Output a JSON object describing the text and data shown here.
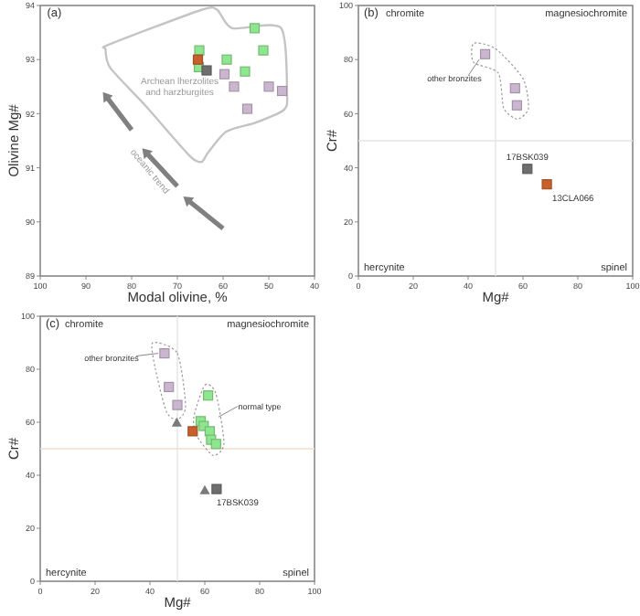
{
  "chart_data": [
    {
      "type": "scatter",
      "xlabel": "Modal olivine, %",
      "ylabel": "Olivine Mg#",
      "xlim": [
        100,
        40
      ],
      "xticks": [
        100,
        90,
        80,
        70,
        60,
        50,
        40
      ],
      "ylim": [
        89,
        94
      ],
      "yticks": [
        89,
        90,
        91,
        92,
        93,
        94
      ],
      "marker": "square",
      "series": [
        {
          "color": "#8ee68e",
          "x": [
            53.1,
            65.2,
            51.2,
            59.2,
            55.2,
            65.3
          ],
          "values": [
            93.58,
            93.17,
            93.17,
            93.0,
            92.78,
            92.86
          ]
        },
        {
          "color": "#c8602c",
          "x": [
            65.5
          ],
          "values": [
            93.0
          ]
        },
        {
          "color": "#6e6e6e",
          "x": [
            63.6
          ],
          "values": [
            92.8
          ]
        },
        {
          "color": "#cbb6cf",
          "x": [
            59.7,
            57.6,
            50.0,
            47.1,
            54.7
          ],
          "values": [
            92.73,
            92.5,
            92.5,
            92.42,
            92.09
          ]
        }
      ],
      "annotations": [
        "(a)",
        "Archean lherzolites and harzburgites",
        "oceanic trend"
      ]
    },
    {
      "type": "scatter",
      "xlabel": "Mg#",
      "ylabel": "Cr#",
      "xlim": [
        0,
        100
      ],
      "xticks": [
        0,
        20,
        40,
        60,
        80,
        100
      ],
      "ylim": [
        0,
        100
      ],
      "yticks": [
        0,
        20,
        40,
        60,
        80,
        100
      ],
      "marker": "square",
      "series": [
        {
          "color": "#cbb6cf",
          "x": [
            46.2,
            57.1,
            57.8
          ],
          "values": [
            82,
            69.4,
            63.1
          ]
        },
        {
          "color": "#6e6e6e",
          "x": [
            61.6
          ],
          "values": [
            39.6
          ]
        },
        {
          "color": "#c8602c",
          "x": [
            68.7
          ],
          "values": [
            33.9
          ]
        }
      ],
      "ref_lines": [
        {
          "axis": "x",
          "value": 50,
          "color": "#e4e4e4"
        },
        {
          "axis": "y",
          "value": 50,
          "color": "#e4e4e4"
        }
      ],
      "annotations": [
        "(b)",
        "chromite",
        "magnesiochromite",
        "hercynite",
        "spinel",
        "other bronzites",
        {
          "text": "17BSK039",
          "x": 61.6,
          "y": 39.6
        },
        {
          "text": "13CLA066",
          "x": 68.7,
          "y": 33.9
        }
      ]
    },
    {
      "type": "scatter",
      "xlabel": "Mg#",
      "ylabel": "Cr#",
      "xlim": [
        0,
        100
      ],
      "xticks": [
        0,
        20,
        40,
        60,
        80,
        100
      ],
      "ylim": [
        0,
        100
      ],
      "yticks": [
        0,
        20,
        40,
        60,
        80,
        100
      ],
      "marker": "square",
      "series": [
        {
          "color": "#cbb6cf",
          "x": [
            45.3,
            46.9,
            50.0
          ],
          "values": [
            86,
            73.3,
            66.5
          ]
        },
        {
          "color": "#8ee68e",
          "x": [
            61.2,
            58.5,
            59.6,
            61.8,
            62.3,
            64.1
          ],
          "values": [
            70.1,
            60.4,
            58.6,
            56.6,
            53.4,
            51.8
          ]
        },
        {
          "color": "#c8602c",
          "x": [
            55.6
          ],
          "values": [
            56.6
          ]
        },
        {
          "color": "#7a7a7a",
          "marker": "triangle",
          "x": [
            49.8,
            60.0
          ],
          "values": [
            59.7,
            34.2
          ]
        },
        {
          "color": "#6e6e6e",
          "x": [
            64.3
          ],
          "values": [
            34.8
          ]
        }
      ],
      "ref_lines": [
        {
          "axis": "x",
          "value": 50,
          "color": "#e4e4e4"
        },
        {
          "axis": "y",
          "value": 50,
          "color": "#f3dccb"
        }
      ],
      "annotations": [
        "(c)",
        "chromite",
        "magnesiochromite",
        "hercynite",
        "spinel",
        "other bronzites",
        "normal type",
        {
          "text": "17BSK039",
          "x": 64.3,
          "y": 34.8
        }
      ]
    }
  ]
}
